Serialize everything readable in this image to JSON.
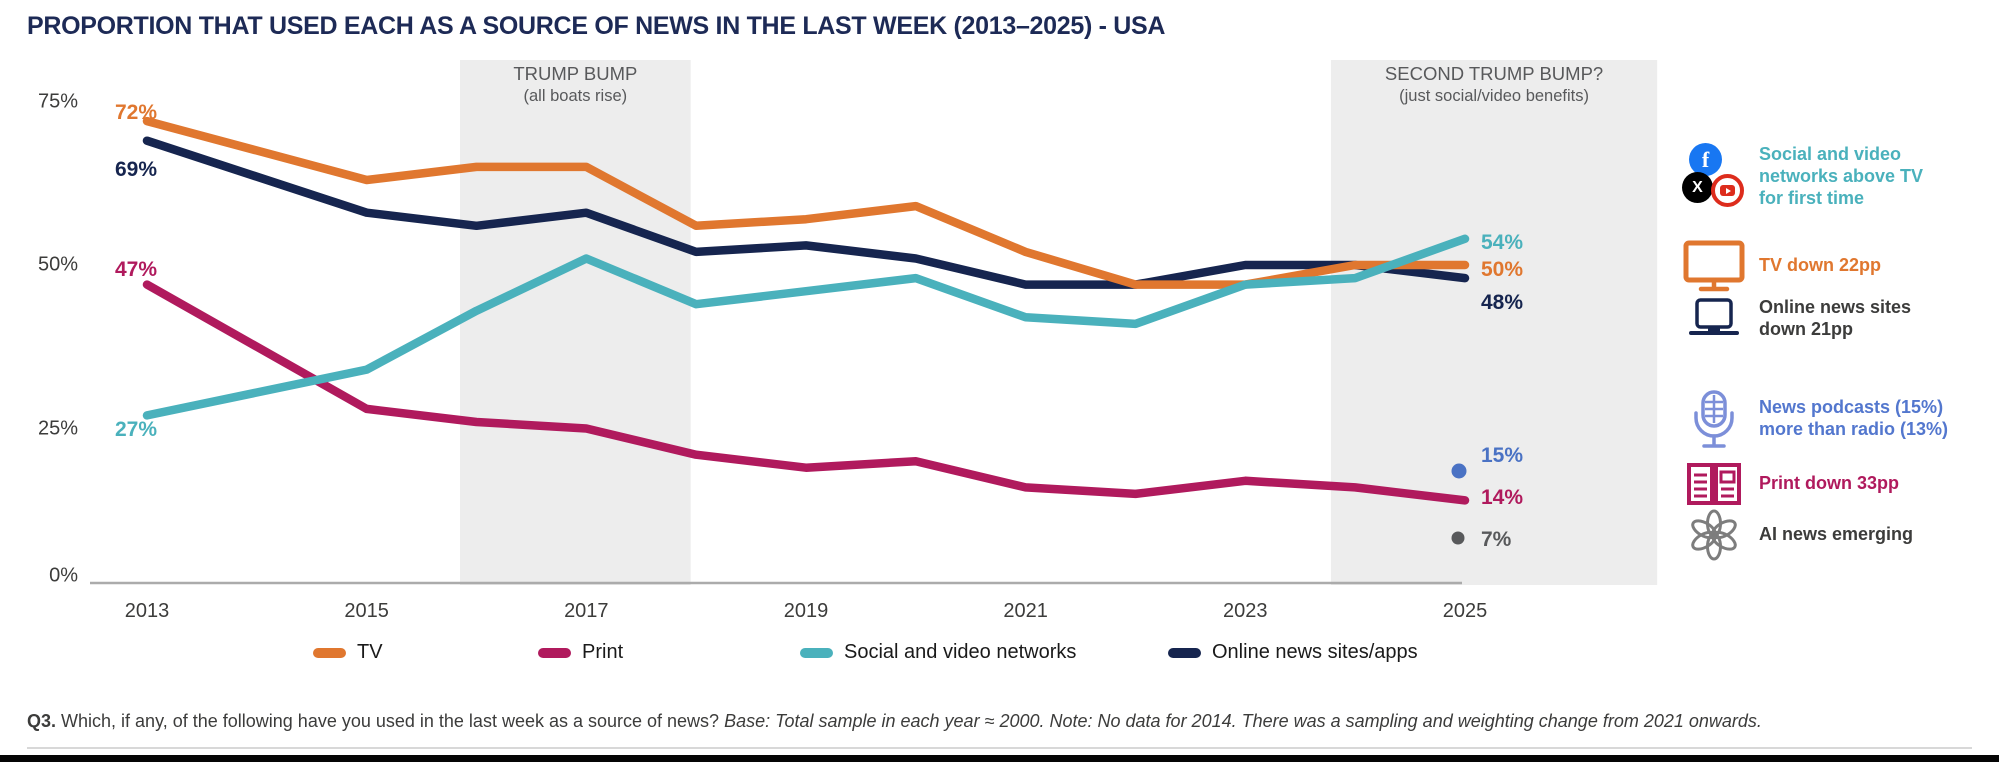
{
  "title": "PROPORTION THAT USED EACH AS A SOURCE OF NEWS IN THE LAST WEEK (2013–2025) - USA",
  "chart_data": {
    "type": "line",
    "x": [
      2013,
      2015,
      2016,
      2017,
      2018,
      2019,
      2020,
      2021,
      2022,
      2023,
      2024,
      2025
    ],
    "x_axis_ticks": [
      "2013",
      "2015",
      "2017",
      "2019",
      "2021",
      "2023",
      "2025"
    ],
    "y_axis_ticks": [
      "75%",
      "50%",
      "25%",
      "0%"
    ],
    "ylim": [
      0,
      75
    ],
    "grid": "off",
    "note": "No data for 2014",
    "series": [
      {
        "name": "TV",
        "color": "#E0772F",
        "start_label": "72%",
        "end_label": "50%",
        "values": [
          72,
          63,
          65,
          65,
          56,
          57,
          59,
          52,
          47,
          47,
          50,
          50
        ]
      },
      {
        "name": "Print",
        "color": "#B01A5D",
        "start_label": "47%",
        "end_label": "14%",
        "values": [
          47,
          28,
          26,
          25,
          21,
          19,
          20,
          16,
          15,
          17,
          16,
          14
        ]
      },
      {
        "name": "Social and video networks",
        "color": "#4AB1BC",
        "start_label": "27%",
        "end_label": "54%",
        "values": [
          27,
          34,
          43,
          51,
          44,
          46,
          48,
          42,
          41,
          47,
          48,
          54
        ]
      },
      {
        "name": "Online news sites/apps",
        "color": "#16254F",
        "start_label": "69%",
        "end_label": "48%",
        "values": [
          69,
          58,
          56,
          58,
          52,
          53,
          51,
          47,
          47,
          50,
          50,
          48
        ]
      }
    ],
    "extra_points": [
      {
        "name": "News podcasts",
        "year": 2025,
        "value": 15,
        "label": "15%",
        "color": "#4A72C4"
      },
      {
        "name": "AI news",
        "year": 2025,
        "value": 7,
        "label": "7%",
        "color": "#58595B"
      }
    ],
    "annotations": [
      {
        "title": "TRUMP BUMP",
        "subtitle": "(all boats rise)",
        "from": 2015.85,
        "to": 2017.95
      },
      {
        "title": "SECOND TRUMP BUMP?",
        "subtitle": "(just social/video benefits)",
        "from": 2023.78,
        "to": 2026.75
      }
    ],
    "legend_position": "bottom"
  },
  "right_legend": [
    {
      "icon": "social-networks-icons",
      "text": "Social and video networks above TV for first time",
      "color": "#4AB1BC"
    },
    {
      "icon": "tv-icon",
      "text": "TV down 22pp",
      "color": "#E0772F"
    },
    {
      "icon": "laptop-icon",
      "text": "Online news sites down 21pp",
      "color": "#3C3C3B"
    },
    {
      "icon": "microphone-icon",
      "text": "News podcasts (15%) more than radio (13%)",
      "color": "#5377CE"
    },
    {
      "icon": "print-icon",
      "text": "Print down 33pp",
      "color": "#B01A5D"
    },
    {
      "icon": "openai-icon",
      "text": "AI news emerging",
      "color": "#3C3C3B"
    }
  ],
  "footer": {
    "q": "Q3.",
    "question": "Which, if any, of the following have you used in the last week as a source of news?",
    "note": "Base: Total sample in each year ≈ 2000. Note: No data for 2014. There was a sampling and weighting change from 2021 onwards."
  }
}
